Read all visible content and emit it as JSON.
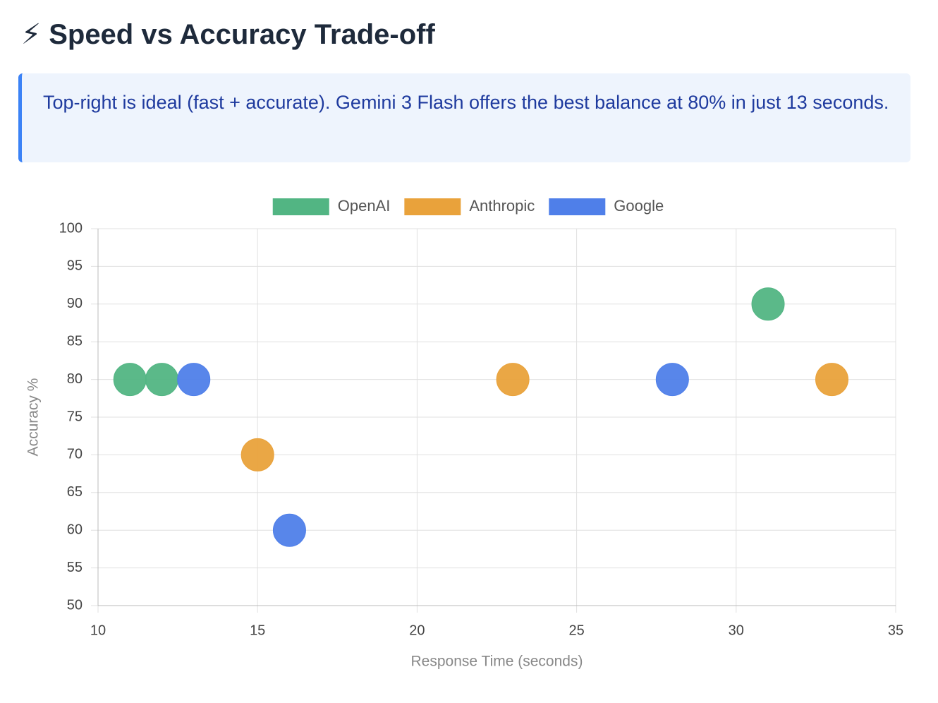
{
  "title": "⚡ Speed vs Accuracy Trade-off",
  "note": "Top-right is ideal (fast + accurate). Gemini 3 Flash offers the best balance at 80% in just 13 seconds.",
  "chart_data": {
    "type": "scatter",
    "x_label": "Response Time (seconds)",
    "y_label": "Accuracy %",
    "series": [
      {
        "name": "OpenAI",
        "color": "#52b583",
        "x": [
          11,
          12,
          31
        ],
        "values": [
          80,
          80,
          90
        ]
      },
      {
        "name": "Anthropic",
        "color": "#e9a23b",
        "x": [
          15,
          23,
          33
        ],
        "values": [
          70,
          80,
          80
        ]
      },
      {
        "name": "Google",
        "color": "#4f7fe9",
        "x": [
          13,
          16,
          28
        ],
        "values": [
          80,
          60,
          80
        ]
      }
    ],
    "xlim": [
      10,
      35
    ],
    "xticks": [
      10,
      15,
      20,
      25,
      30,
      35
    ],
    "ylim": [
      50,
      100
    ],
    "yticks": [
      50,
      55,
      60,
      65,
      70,
      75,
      80,
      85,
      90,
      95,
      100
    ],
    "grid": true,
    "legend": "top"
  }
}
